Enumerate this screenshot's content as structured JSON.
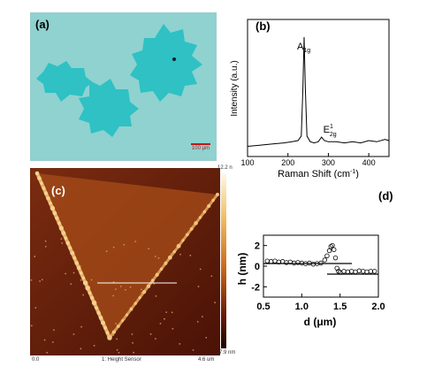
{
  "panels": {
    "a": {
      "label": "(a)",
      "scale_bar": "100 μm",
      "colors": {
        "substrate": "#8fd2d0",
        "flake": "#2fc1c4"
      }
    },
    "b": {
      "label": "(b)",
      "chart_data": {
        "type": "line",
        "xlabel": "Raman Shift (cm",
        "xlabel_sup": "-1",
        "xlabel_suffix": ")",
        "ylabel": "Intensity (a.u.)",
        "xlim": [
          100,
          450
        ],
        "xticks": [
          100,
          200,
          300,
          400
        ],
        "annotations": [
          {
            "main": "A",
            "sub": "1g",
            "sup": "",
            "x": 240
          },
          {
            "main": "E",
            "sub": "2g",
            "sup": "1",
            "x": 283
          }
        ],
        "series": [
          {
            "x": [
              100,
              130,
              160,
              190,
              210,
              225,
              233,
              237,
              240,
              243,
              247,
              255,
              265,
              275,
              283,
              290,
              300,
              320,
              340,
              360,
              380,
              400,
              420,
              440,
              450
            ],
            "values": [
              0.05,
              0.06,
              0.07,
              0.08,
              0.09,
              0.1,
              0.14,
              0.55,
              1.0,
              0.55,
              0.14,
              0.09,
              0.08,
              0.09,
              0.13,
              0.1,
              0.09,
              0.09,
              0.08,
              0.09,
              0.08,
              0.1,
              0.09,
              0.11,
              0.1
            ]
          }
        ]
      }
    },
    "c": {
      "label": "(c)",
      "colorbar_max": "12.2 n",
      "colorbar_min": "-7.9 nm",
      "x_start": "0.0",
      "x_end": "4.6 um",
      "channel": "1: Height Sensor"
    },
    "d": {
      "label": "(d)",
      "chart_data": {
        "type": "scatter",
        "xlabel": "d (",
        "xlabel_unit": "μm",
        "xlabel_suffix": ")",
        "ylabel": "h (nm)",
        "xlim": [
          0.5,
          2.0
        ],
        "ylim": [
          -3,
          3
        ],
        "xticks": [
          "0.5",
          "1.0",
          "1.5",
          "2.0"
        ],
        "yticks": [
          "2",
          "0",
          "-2"
        ],
        "series": [
          {
            "x": [
              0.55,
              0.6,
              0.65,
              0.7,
              0.75,
              0.8,
              0.85,
              0.9,
              0.95,
              1.0,
              1.05,
              1.1,
              1.15,
              1.2,
              1.25,
              1.3,
              1.33,
              1.36,
              1.38,
              1.4,
              1.42,
              1.44,
              1.46,
              1.48,
              1.5,
              1.55,
              1.6,
              1.65,
              1.7,
              1.75,
              1.8,
              1.85,
              1.9,
              1.95
            ],
            "values": [
              0.5,
              0.45,
              0.5,
              0.4,
              0.45,
              0.35,
              0.4,
              0.3,
              0.35,
              0.3,
              0.25,
              0.3,
              0.2,
              0.25,
              0.3,
              0.6,
              1.0,
              1.5,
              1.9,
              2.0,
              1.6,
              0.8,
              -0.2,
              -0.5,
              -0.6,
              -0.5,
              -0.55,
              -0.5,
              -0.55,
              -0.45,
              -0.5,
              -0.55,
              -0.5,
              -0.5
            ]
          }
        ]
      }
    }
  }
}
